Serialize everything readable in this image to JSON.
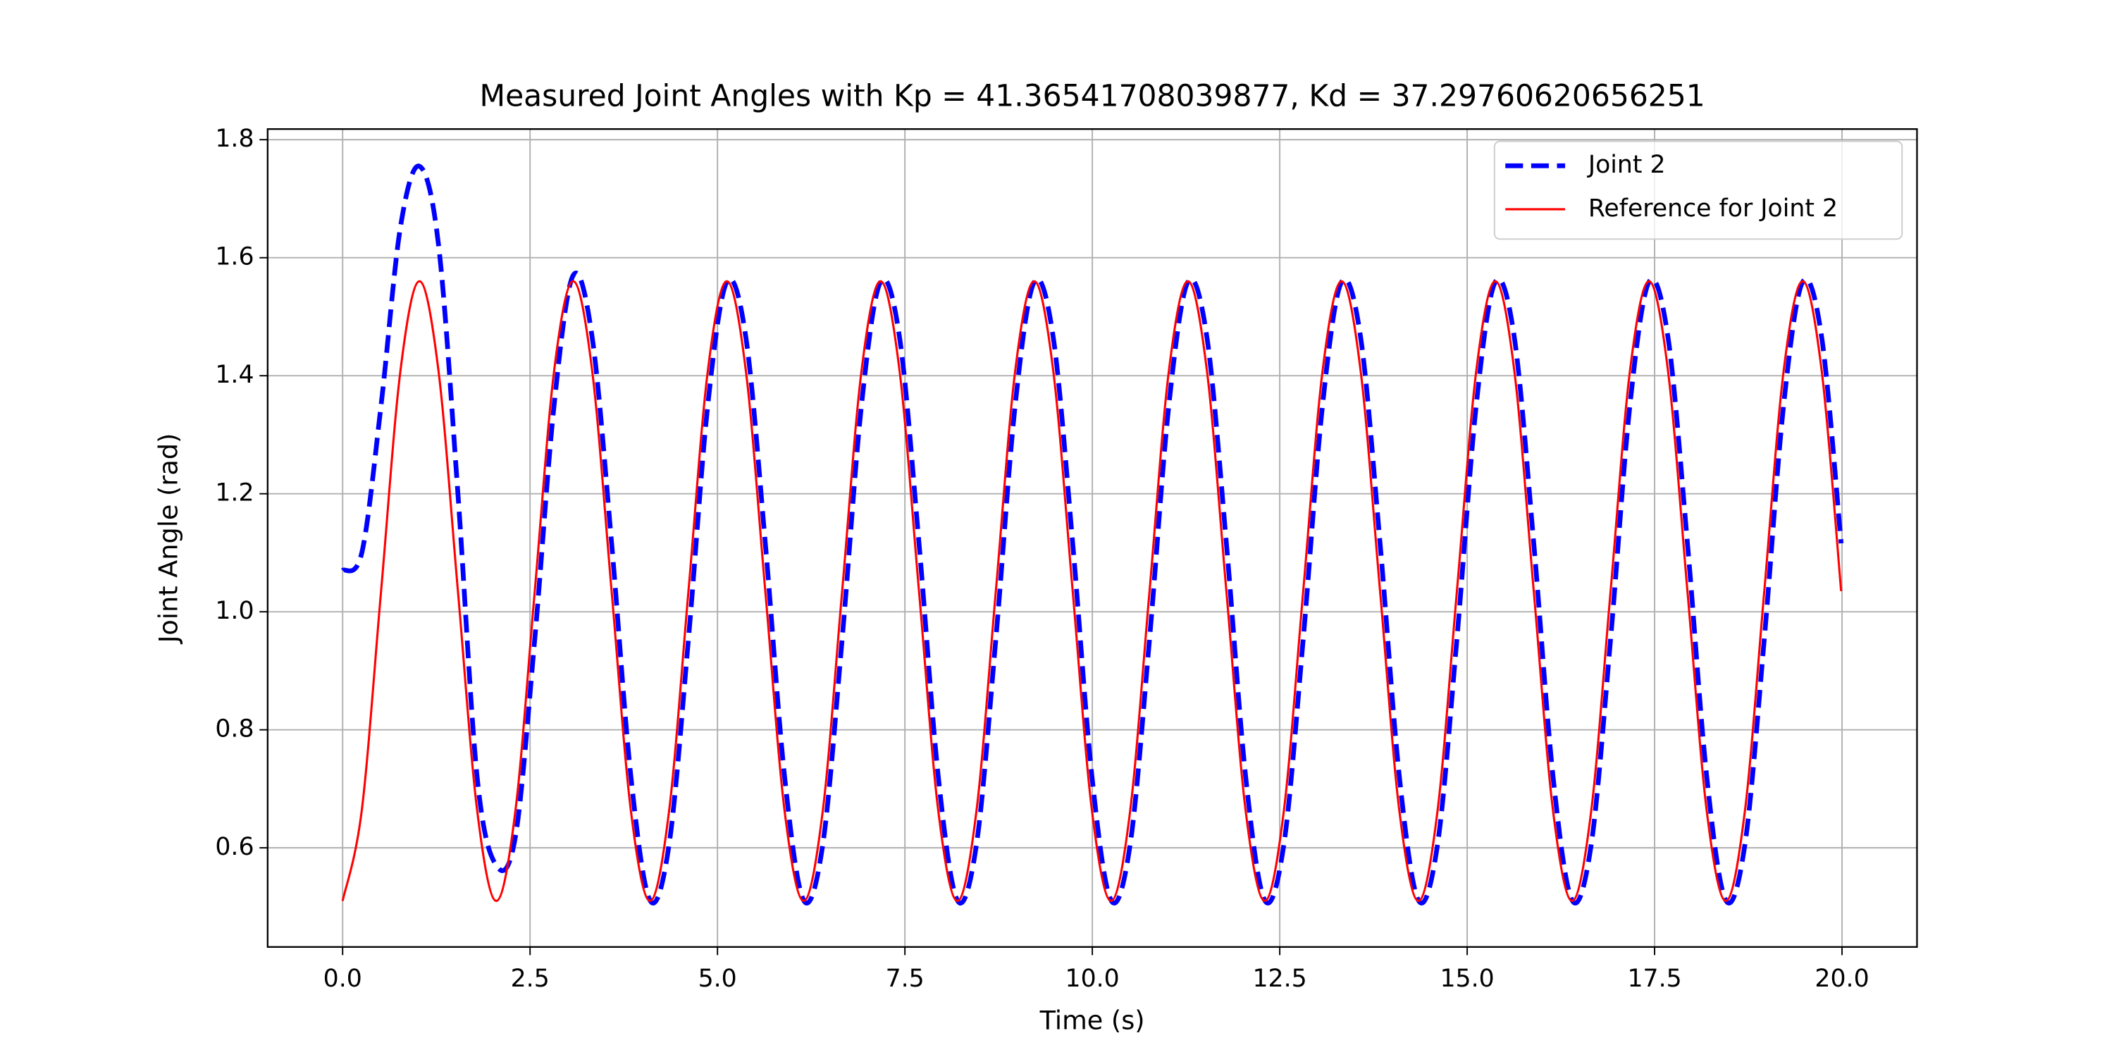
{
  "chart_data": {
    "type": "line",
    "title": "Measured Joint Angles with Kp = 41.36541708039877, Kd = 37.29760620656251",
    "xlabel": "Time (s)",
    "ylabel": "Joint Angle (rad)",
    "x": [
      0,
      0.256,
      0.513,
      0.769,
      1.025,
      1.281,
      1.538,
      1.794,
      2.05,
      2.306,
      2.563,
      2.819,
      3.075,
      3.331,
      3.588,
      3.844,
      4.1,
      4.356,
      4.613,
      4.869,
      5.125,
      5.381,
      5.638,
      5.894,
      6.15,
      6.406,
      6.663,
      6.919,
      7.175,
      7.431,
      7.688,
      7.944,
      8.2,
      8.456,
      8.713,
      8.969,
      9.225,
      9.481,
      9.738,
      9.994,
      10.25,
      10.506,
      10.763,
      11.019,
      11.275,
      11.531,
      11.788,
      12.044,
      12.3,
      12.556,
      12.813,
      13.069,
      13.325,
      13.581,
      13.838,
      14.094,
      14.35,
      14.606,
      14.863,
      15.119,
      15.375,
      15.631,
      15.888,
      16.144,
      16.4,
      16.656,
      16.913,
      17.169,
      17.425,
      17.681,
      17.938,
      18.194,
      18.45,
      18.706,
      18.963,
      19.219,
      19.475,
      19.731,
      19.988
    ],
    "series": [
      {
        "name": "Joint 2",
        "color": "#0000ff",
        "linestyle": "dashed",
        "values": [
          1.07,
          1.1,
          1.35,
          1.65,
          1.755,
          1.62,
          1.2,
          0.72,
          0.57,
          0.62,
          0.954,
          1.348,
          1.57,
          1.463,
          1.116,
          0.722,
          0.511,
          0.607,
          0.954,
          1.348,
          1.559,
          1.463,
          1.116,
          0.722,
          0.511,
          0.607,
          0.954,
          1.348,
          1.559,
          1.463,
          1.116,
          0.722,
          0.511,
          0.607,
          0.954,
          1.348,
          1.559,
          1.463,
          1.116,
          0.722,
          0.511,
          0.607,
          0.954,
          1.348,
          1.559,
          1.463,
          1.116,
          0.722,
          0.511,
          0.607,
          0.954,
          1.348,
          1.559,
          1.463,
          1.116,
          0.722,
          0.511,
          0.607,
          0.954,
          1.348,
          1.559,
          1.463,
          1.116,
          0.722,
          0.511,
          0.607,
          0.954,
          1.348,
          1.559,
          1.463,
          1.116,
          0.722,
          0.511,
          0.607,
          0.954,
          1.348,
          1.559,
          1.463,
          1.116
        ]
      },
      {
        "name": "Reference for Joint 2",
        "color": "#ff0000",
        "linestyle": "solid",
        "values": [
          0.51,
          0.664,
          1.035,
          1.406,
          1.56,
          1.406,
          1.035,
          0.664,
          0.51,
          0.664,
          1.035,
          1.406,
          1.56,
          1.406,
          1.035,
          0.664,
          0.51,
          0.664,
          1.035,
          1.406,
          1.56,
          1.406,
          1.035,
          0.664,
          0.51,
          0.664,
          1.035,
          1.406,
          1.56,
          1.406,
          1.035,
          0.664,
          0.51,
          0.664,
          1.035,
          1.406,
          1.56,
          1.406,
          1.035,
          0.664,
          0.51,
          0.664,
          1.035,
          1.406,
          1.56,
          1.406,
          1.035,
          0.664,
          0.51,
          0.664,
          1.035,
          1.406,
          1.56,
          1.406,
          1.035,
          0.664,
          0.51,
          0.664,
          1.035,
          1.406,
          1.56,
          1.406,
          1.035,
          0.664,
          0.51,
          0.664,
          1.035,
          1.406,
          1.56,
          1.406,
          1.035,
          0.664,
          0.51,
          0.664,
          1.035,
          1.406,
          1.56,
          1.406,
          1.035
        ]
      }
    ],
    "xlim": [
      -1,
      21
    ],
    "ylim": [
      0.432,
      1.818
    ],
    "xticks": [
      {
        "value": 0,
        "label": "0.0"
      },
      2.5,
      {
        "value": 5,
        "label": "5.0"
      },
      7.5,
      {
        "value": 10,
        "label": "10.0"
      },
      12.5,
      {
        "value": 15,
        "label": "15.0"
      },
      17.5,
      {
        "value": 20,
        "label": "20.0"
      }
    ],
    "yticks": [
      0.6,
      0.8,
      {
        "value": 1,
        "label": "1.0"
      },
      1.2,
      1.4,
      1.6,
      1.8
    ],
    "grid": true,
    "legend": "upper right"
  }
}
